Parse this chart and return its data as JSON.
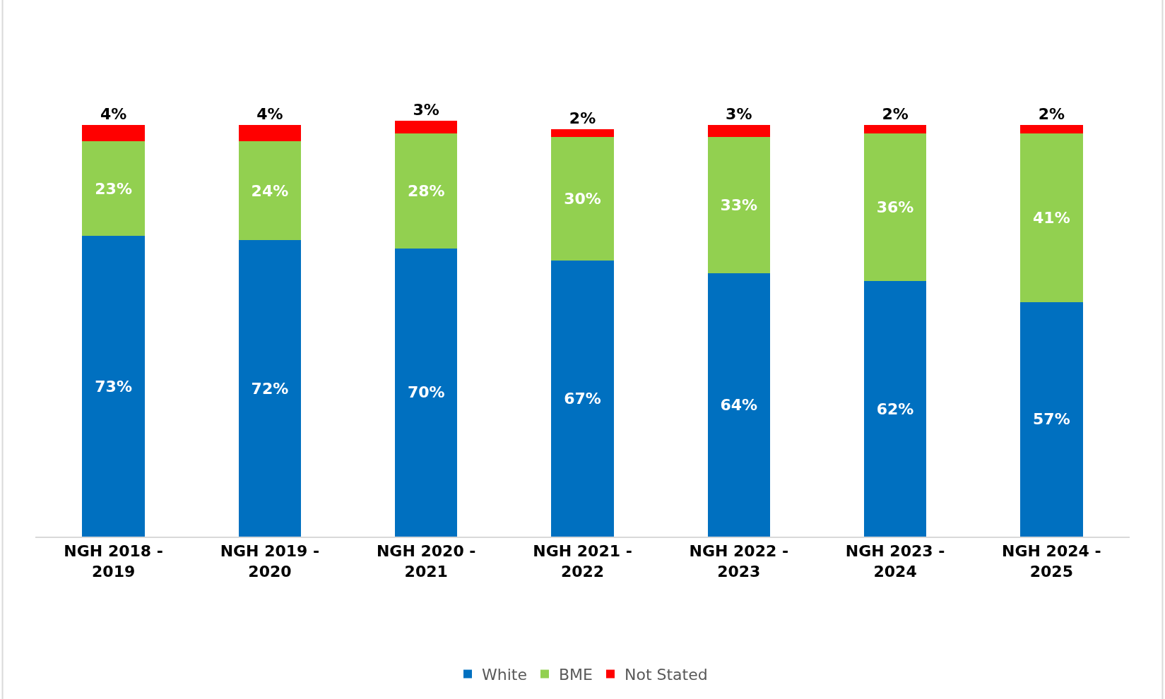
{
  "chart_data": {
    "type": "bar",
    "stacked": true,
    "legend": "bottom",
    "categories": [
      "NGH 2018 - 2019",
      "NGH 2019 - 2020",
      "NGH 2020 - 2021",
      "NGH 2021 - 2022",
      "NGH 2022 - 2023",
      "NGH 2023 - 2024",
      "NGH 2024 - 2025"
    ],
    "series": [
      {
        "name": "White",
        "color": "#0070c0",
        "values": [
          73,
          72,
          70,
          67,
          64,
          62,
          57
        ],
        "value_labels": [
          "73%",
          "72%",
          "70%",
          "67%",
          "64%",
          "62%",
          "57%"
        ]
      },
      {
        "name": "BME",
        "color": "#92d050",
        "values": [
          23,
          24,
          28,
          30,
          33,
          36,
          41
        ],
        "value_labels": [
          "23%",
          "24%",
          "28%",
          "30%",
          "33%",
          "36%",
          "41%"
        ]
      },
      {
        "name": "Not Stated",
        "color": "#ff0000",
        "values": [
          4,
          4,
          3,
          2,
          3,
          2,
          2
        ],
        "value_labels": [
          "4%",
          "4%",
          "3%",
          "2%",
          "3%",
          "2%",
          "2%"
        ]
      }
    ]
  }
}
